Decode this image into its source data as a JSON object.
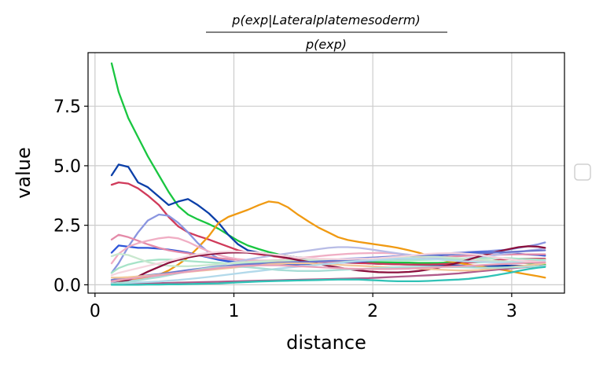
{
  "chart_data": {
    "type": "line",
    "title": {
      "numerator": "p(exp|Lateralplatemesoderm)",
      "denominator": "p(exp)"
    },
    "xlabel": "distance",
    "ylabel": "value",
    "xlim": [
      -0.05,
      3.38
    ],
    "ylim": [
      -0.35,
      9.75
    ],
    "xticks": [
      0,
      1,
      2,
      3
    ],
    "xtick_labels": [
      "0",
      "1",
      "2",
      "3"
    ],
    "yticks": [
      0,
      2.5,
      5,
      7.5
    ],
    "ytick_labels": [
      "0.0",
      "2.5",
      "5.0",
      "7.5"
    ],
    "grid": true,
    "legend": "right (empty)",
    "x": [
      0.12,
      0.17,
      0.24,
      0.31,
      0.38,
      0.46,
      0.53,
      0.6,
      0.67,
      0.74,
      0.82,
      0.89,
      0.96,
      1.03,
      1.1,
      1.18,
      1.25,
      1.32,
      1.39,
      1.46,
      1.54,
      1.61,
      1.68,
      1.75,
      1.82,
      1.9,
      1.97,
      2.04,
      2.11,
      2.18,
      2.26,
      2.33,
      2.4,
      2.47,
      2.54,
      2.62,
      2.69,
      2.76,
      2.83,
      2.9,
      2.98,
      3.05,
      3.12,
      3.19,
      3.24
    ],
    "series": [
      {
        "color": "#19c640",
        "values": [
          9.3,
          8.1,
          7.0,
          6.2,
          5.4,
          4.6,
          3.9,
          3.3,
          2.95,
          2.75,
          2.55,
          2.35,
          2.1,
          1.85,
          1.65,
          1.5,
          1.38,
          1.28,
          1.2,
          1.15,
          1.12,
          1.08,
          1.05,
          1.02,
          1.0,
          0.98,
          0.96,
          0.95,
          0.94,
          0.93,
          0.93,
          0.92,
          0.92,
          0.92,
          0.93,
          0.93,
          0.94,
          0.95,
          0.96,
          0.96,
          0.95,
          0.93,
          0.9,
          0.88,
          0.85
        ]
      },
      {
        "color": "#0b3fa8",
        "values": [
          4.6,
          5.05,
          4.95,
          4.3,
          4.1,
          3.7,
          3.35,
          3.5,
          3.6,
          3.35,
          3.0,
          2.6,
          2.1,
          1.7,
          1.45,
          1.35,
          1.3,
          1.25,
          1.2,
          1.15,
          1.1,
          1.05,
          1.0,
          0.98,
          0.95,
          0.93,
          0.9,
          0.88,
          0.87,
          0.86,
          0.85,
          0.84,
          0.83,
          0.82,
          0.82,
          0.81,
          0.8,
          0.8,
          0.8,
          0.8,
          0.8,
          0.8,
          0.8,
          0.8,
          0.8
        ]
      },
      {
        "color": "#d03a5a",
        "values": [
          4.2,
          4.3,
          4.25,
          4.05,
          3.75,
          3.35,
          2.85,
          2.45,
          2.2,
          2.05,
          1.9,
          1.75,
          1.6,
          1.45,
          1.35,
          1.28,
          1.22,
          1.17,
          1.12,
          1.08,
          1.04,
          1.01,
          0.98,
          0.95,
          0.93,
          0.91,
          0.9,
          0.88,
          0.87,
          0.86,
          0.85,
          0.85,
          0.85,
          0.86,
          0.88,
          0.9,
          0.93,
          0.96,
          1.0,
          1.04,
          1.08,
          1.1,
          1.1,
          1.1,
          1.1
        ]
      },
      {
        "color": "#f09a12",
        "values": [
          0.15,
          0.18,
          0.22,
          0.26,
          0.32,
          0.42,
          0.6,
          0.85,
          1.15,
          1.55,
          2.05,
          2.6,
          2.85,
          3.0,
          3.15,
          3.35,
          3.5,
          3.45,
          3.25,
          2.95,
          2.65,
          2.4,
          2.2,
          2.0,
          1.88,
          1.8,
          1.74,
          1.68,
          1.62,
          1.55,
          1.45,
          1.35,
          1.22,
          1.1,
          1.0,
          0.92,
          0.84,
          0.78,
          0.72,
          0.66,
          0.58,
          0.5,
          0.43,
          0.36,
          0.3
        ]
      },
      {
        "color": "#8a95e0",
        "values": [
          0.5,
          0.9,
          1.6,
          2.2,
          2.7,
          2.95,
          2.9,
          2.6,
          2.2,
          1.75,
          1.35,
          1.1,
          1.0,
          0.95,
          0.92,
          0.9,
          0.9,
          0.92,
          0.95,
          0.98,
          1.0,
          1.02,
          1.05,
          1.08,
          1.1,
          1.12,
          1.14,
          1.16,
          1.18,
          1.2,
          1.22,
          1.25,
          1.28,
          1.3,
          1.32,
          1.35,
          1.38,
          1.4,
          1.42,
          1.45,
          1.48,
          1.55,
          1.62,
          1.7,
          1.78
        ]
      },
      {
        "color": "#2d55d8",
        "values": [
          1.35,
          1.65,
          1.6,
          1.55,
          1.55,
          1.52,
          1.48,
          1.42,
          1.35,
          1.25,
          1.15,
          1.05,
          0.98,
          0.95,
          0.92,
          0.9,
          0.88,
          0.87,
          0.86,
          0.86,
          0.87,
          0.88,
          0.9,
          0.92,
          0.95,
          0.97,
          1.0,
          1.02,
          1.05,
          1.08,
          1.1,
          1.14,
          1.18,
          1.22,
          1.26,
          1.3,
          1.34,
          1.36,
          1.37,
          1.36,
          1.33,
          1.3,
          1.27,
          1.25,
          1.22
        ]
      },
      {
        "color": "#e48aa8",
        "values": [
          1.9,
          2.1,
          2.0,
          1.85,
          1.7,
          1.55,
          1.45,
          1.38,
          1.32,
          1.25,
          1.18,
          1.12,
          1.08,
          1.05,
          1.02,
          1.0,
          0.98,
          0.97,
          0.96,
          0.95,
          0.95,
          0.95,
          0.96,
          0.97,
          0.98,
          1.0,
          1.02,
          1.04,
          1.06,
          1.08,
          1.1,
          1.12,
          1.14,
          1.16,
          1.18,
          1.2,
          1.22,
          1.24,
          1.25,
          1.26,
          1.27,
          1.28,
          1.28,
          1.28,
          1.28
        ]
      },
      {
        "color": "#f0aec4",
        "values": [
          0.9,
          1.3,
          1.6,
          1.75,
          1.85,
          1.95,
          2.0,
          1.95,
          1.8,
          1.6,
          1.4,
          1.25,
          1.15,
          1.08,
          1.04,
          1.02,
          1.02,
          1.04,
          1.08,
          1.12,
          1.16,
          1.2,
          1.24,
          1.27,
          1.3,
          1.32,
          1.33,
          1.34,
          1.33,
          1.3,
          1.26,
          1.2,
          1.15,
          1.1,
          1.06,
          1.03,
          1.0,
          0.98,
          0.97,
          0.97,
          0.98,
          1.0,
          1.02,
          1.04,
          1.06
        ]
      },
      {
        "color": "#b8bce6",
        "values": [
          0.1,
          0.12,
          0.15,
          0.2,
          0.26,
          0.34,
          0.42,
          0.5,
          0.58,
          0.66,
          0.74,
          0.82,
          0.9,
          0.98,
          1.06,
          1.14,
          1.2,
          1.26,
          1.32,
          1.38,
          1.44,
          1.5,
          1.55,
          1.58,
          1.58,
          1.55,
          1.5,
          1.44,
          1.38,
          1.32,
          1.26,
          1.2,
          1.16,
          1.12,
          1.1,
          1.1,
          1.12,
          1.15,
          1.2,
          1.26,
          1.32,
          1.38,
          1.44,
          1.5,
          1.55
        ]
      },
      {
        "color": "#a6e3c8",
        "values": [
          0.5,
          0.7,
          0.85,
          0.95,
          1.02,
          1.06,
          1.06,
          1.04,
          1.0,
          0.97,
          0.94,
          0.92,
          0.9,
          0.9,
          0.9,
          0.91,
          0.92,
          0.93,
          0.95,
          0.96,
          0.98,
          1.0,
          1.01,
          1.02,
          1.02,
          1.02,
          1.02,
          1.02,
          1.02,
          1.02,
          1.03,
          1.04,
          1.05,
          1.06,
          1.07,
          1.08,
          1.1,
          1.11,
          1.12,
          1.12,
          1.12,
          1.1,
          1.08,
          1.06,
          1.05
        ]
      },
      {
        "color": "#c9e8cf",
        "values": [
          1.2,
          1.3,
          1.25,
          1.1,
          0.95,
          0.85,
          0.8,
          0.78,
          0.78,
          0.8,
          0.83,
          0.86,
          0.9,
          0.93,
          0.96,
          0.98,
          1.0,
          1.02,
          1.03,
          1.04,
          1.05,
          1.05,
          1.06,
          1.06,
          1.07,
          1.08,
          1.1,
          1.12,
          1.14,
          1.16,
          1.17,
          1.18,
          1.18,
          1.17,
          1.15,
          1.12,
          1.09,
          1.06,
          1.03,
          1.0,
          0.98,
          0.96,
          0.95,
          0.94,
          0.94
        ]
      },
      {
        "color": "#8a0f3c",
        "values": [
          0.05,
          0.1,
          0.2,
          0.35,
          0.55,
          0.75,
          0.92,
          1.05,
          1.15,
          1.22,
          1.28,
          1.32,
          1.35,
          1.36,
          1.35,
          1.32,
          1.26,
          1.2,
          1.12,
          1.04,
          0.96,
          0.88,
          0.8,
          0.73,
          0.66,
          0.6,
          0.56,
          0.53,
          0.52,
          0.52,
          0.54,
          0.58,
          0.64,
          0.72,
          0.82,
          0.94,
          1.06,
          1.18,
          1.3,
          1.4,
          1.5,
          1.58,
          1.62,
          1.6,
          1.55
        ]
      },
      {
        "color": "#6a78d0",
        "values": [
          0.2,
          0.25,
          0.3,
          0.35,
          0.4,
          0.45,
          0.5,
          0.56,
          0.62,
          0.67,
          0.72,
          0.76,
          0.8,
          0.83,
          0.86,
          0.88,
          0.9,
          0.92,
          0.94,
          0.95,
          0.96,
          0.98,
          1.0,
          1.02,
          1.05,
          1.08,
          1.11,
          1.14,
          1.17,
          1.2,
          1.22,
          1.24,
          1.25,
          1.26,
          1.27,
          1.28,
          1.3,
          1.32,
          1.34,
          1.36,
          1.38,
          1.4,
          1.42,
          1.44,
          1.45
        ]
      },
      {
        "color": "#b05a8a",
        "values": [
          0.02,
          0.03,
          0.04,
          0.05,
          0.06,
          0.07,
          0.08,
          0.09,
          0.1,
          0.11,
          0.12,
          0.13,
          0.14,
          0.15,
          0.16,
          0.17,
          0.18,
          0.19,
          0.2,
          0.21,
          0.22,
          0.23,
          0.24,
          0.25,
          0.26,
          0.27,
          0.28,
          0.3,
          0.32,
          0.34,
          0.36,
          0.38,
          0.4,
          0.42,
          0.45,
          0.48,
          0.52,
          0.56,
          0.6,
          0.64,
          0.68,
          0.72,
          0.75,
          0.78,
          0.8
        ]
      },
      {
        "color": "#f2c79a",
        "values": [
          0.3,
          0.3,
          0.32,
          0.35,
          0.38,
          0.42,
          0.46,
          0.5,
          0.54,
          0.58,
          0.62,
          0.66,
          0.7,
          0.74,
          0.78,
          0.82,
          0.86,
          0.88,
          0.9,
          0.9,
          0.9,
          0.88,
          0.86,
          0.84,
          0.82,
          0.8,
          0.78,
          0.76,
          0.74,
          0.72,
          0.7,
          0.68,
          0.66,
          0.64,
          0.62,
          0.6,
          0.6,
          0.62,
          0.66,
          0.7,
          0.74,
          0.78,
          0.82,
          0.86,
          0.9
        ]
      },
      {
        "color": "#b2d9ea",
        "values": [
          0.05,
          0.06,
          0.08,
          0.1,
          0.12,
          0.14,
          0.17,
          0.2,
          0.24,
          0.28,
          0.33,
          0.38,
          0.43,
          0.48,
          0.53,
          0.58,
          0.63,
          0.68,
          0.72,
          0.76,
          0.8,
          0.84,
          0.88,
          0.92,
          0.96,
          1.0,
          1.03,
          1.06,
          1.08,
          1.1,
          1.1,
          1.1,
          1.08,
          1.06,
          1.03,
          1.0,
          0.98,
          0.96,
          0.95,
          0.94,
          0.94,
          0.95,
          0.96,
          0.98,
          1.0
        ]
      },
      {
        "color": "#f5d5de",
        "values": [
          0.4,
          0.5,
          0.6,
          0.7,
          0.8,
          0.9,
          1.0,
          1.1,
          1.2,
          1.28,
          1.34,
          1.38,
          1.4,
          1.4,
          1.38,
          1.35,
          1.3,
          1.25,
          1.2,
          1.15,
          1.12,
          1.1,
          1.09,
          1.08,
          1.08,
          1.09,
          1.1,
          1.12,
          1.15,
          1.18,
          1.22,
          1.26,
          1.3,
          1.32,
          1.33,
          1.32,
          1.3,
          1.26,
          1.2,
          1.14,
          1.08,
          1.02,
          0.98,
          0.96,
          0.95
        ]
      },
      {
        "color": "#a8ddd6",
        "values": [
          0.05,
          0.08,
          0.12,
          0.18,
          0.25,
          0.32,
          0.4,
          0.48,
          0.56,
          0.64,
          0.7,
          0.74,
          0.76,
          0.76,
          0.74,
          0.7,
          0.66,
          0.62,
          0.6,
          0.58,
          0.58,
          0.58,
          0.6,
          0.62,
          0.64,
          0.66,
          0.68,
          0.7,
          0.72,
          0.74,
          0.75,
          0.76,
          0.76,
          0.76,
          0.75,
          0.74,
          0.73,
          0.72,
          0.72,
          0.72,
          0.73,
          0.74,
          0.76,
          0.78,
          0.8
        ]
      },
      {
        "color": "#e8a0b8",
        "values": [
          0.15,
          0.2,
          0.25,
          0.3,
          0.35,
          0.4,
          0.45,
          0.5,
          0.55,
          0.6,
          0.65,
          0.7,
          0.74,
          0.78,
          0.8,
          0.82,
          0.82,
          0.82,
          0.8,
          0.78,
          0.76,
          0.74,
          0.72,
          0.7,
          0.68,
          0.67,
          0.66,
          0.66,
          0.66,
          0.67,
          0.68,
          0.7,
          0.72,
          0.74,
          0.76,
          0.78,
          0.8,
          0.82,
          0.84,
          0.86,
          0.88,
          0.9,
          0.92,
          0.93,
          0.94
        ]
      },
      {
        "color": "#2fc2b6",
        "values": [
          0.0,
          0.0,
          0.0,
          0.0,
          0.01,
          0.01,
          0.02,
          0.02,
          0.03,
          0.04,
          0.05,
          0.06,
          0.08,
          0.1,
          0.12,
          0.14,
          0.15,
          0.16,
          0.17,
          0.18,
          0.19,
          0.2,
          0.21,
          0.22,
          0.22,
          0.22,
          0.2,
          0.18,
          0.16,
          0.15,
          0.15,
          0.15,
          0.16,
          0.18,
          0.2,
          0.22,
          0.25,
          0.3,
          0.35,
          0.42,
          0.5,
          0.58,
          0.66,
          0.72,
          0.75
        ]
      }
    ]
  }
}
